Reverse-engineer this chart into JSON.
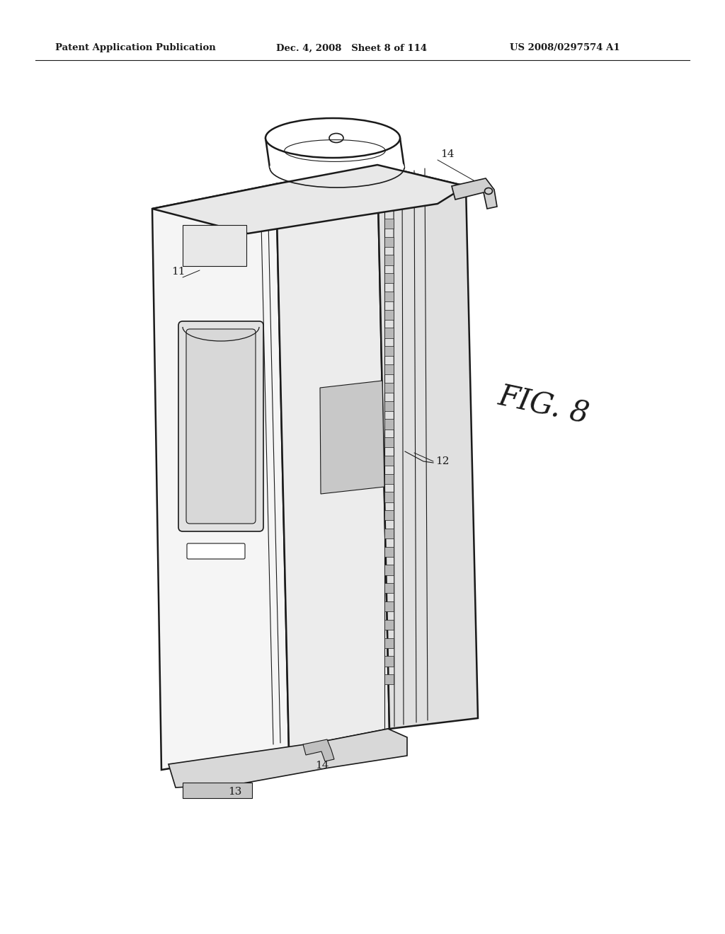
{
  "background_color": "#ffffff",
  "header_left": "Patent Application Publication",
  "header_center": "Dec. 4, 2008   Sheet 8 of 114",
  "header_right": "US 2008/0297574 A1",
  "fig_label": "FIG. 8",
  "line_color": "#1a1a1a",
  "text_color": "#1a1a1a"
}
